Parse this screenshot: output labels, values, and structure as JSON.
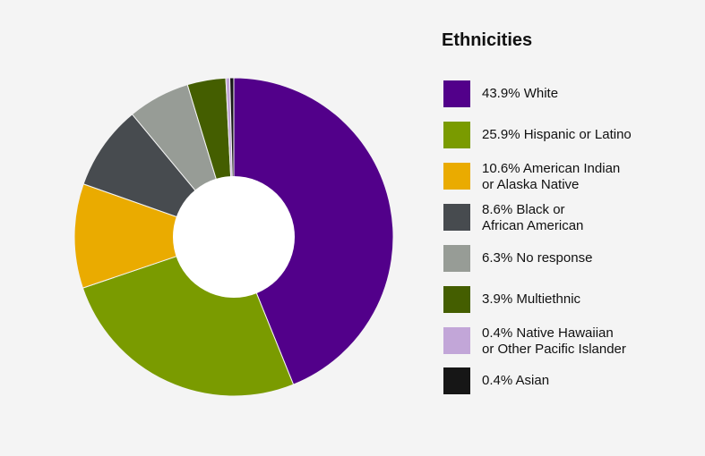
{
  "chart_data": {
    "type": "pie",
    "title": "Ethnicities",
    "donut": true,
    "legend_position": "right",
    "slices": [
      {
        "label": "43.9% White",
        "value": 43.9,
        "color": "#52008a"
      },
      {
        "label": "25.9% Hispanic or Latino",
        "value": 25.9,
        "color": "#7a9b00"
      },
      {
        "label": "10.6% American Indian\nor Alaska Native",
        "value": 10.6,
        "color": "#eaab00"
      },
      {
        "label": "8.6% Black or\nAfrican American",
        "value": 8.6,
        "color": "#474b4f"
      },
      {
        "label": "6.3% No response",
        "value": 6.3,
        "color": "#979c96"
      },
      {
        "label": "3.9% Multiethnic",
        "value": 3.9,
        "color": "#445e00"
      },
      {
        "label": "0.4% Native Hawaiian\nor Other Pacific Islander",
        "value": 0.4,
        "color": "#c2a6d8"
      },
      {
        "label": "0.4% Asian",
        "value": 0.4,
        "color": "#161616"
      }
    ]
  }
}
